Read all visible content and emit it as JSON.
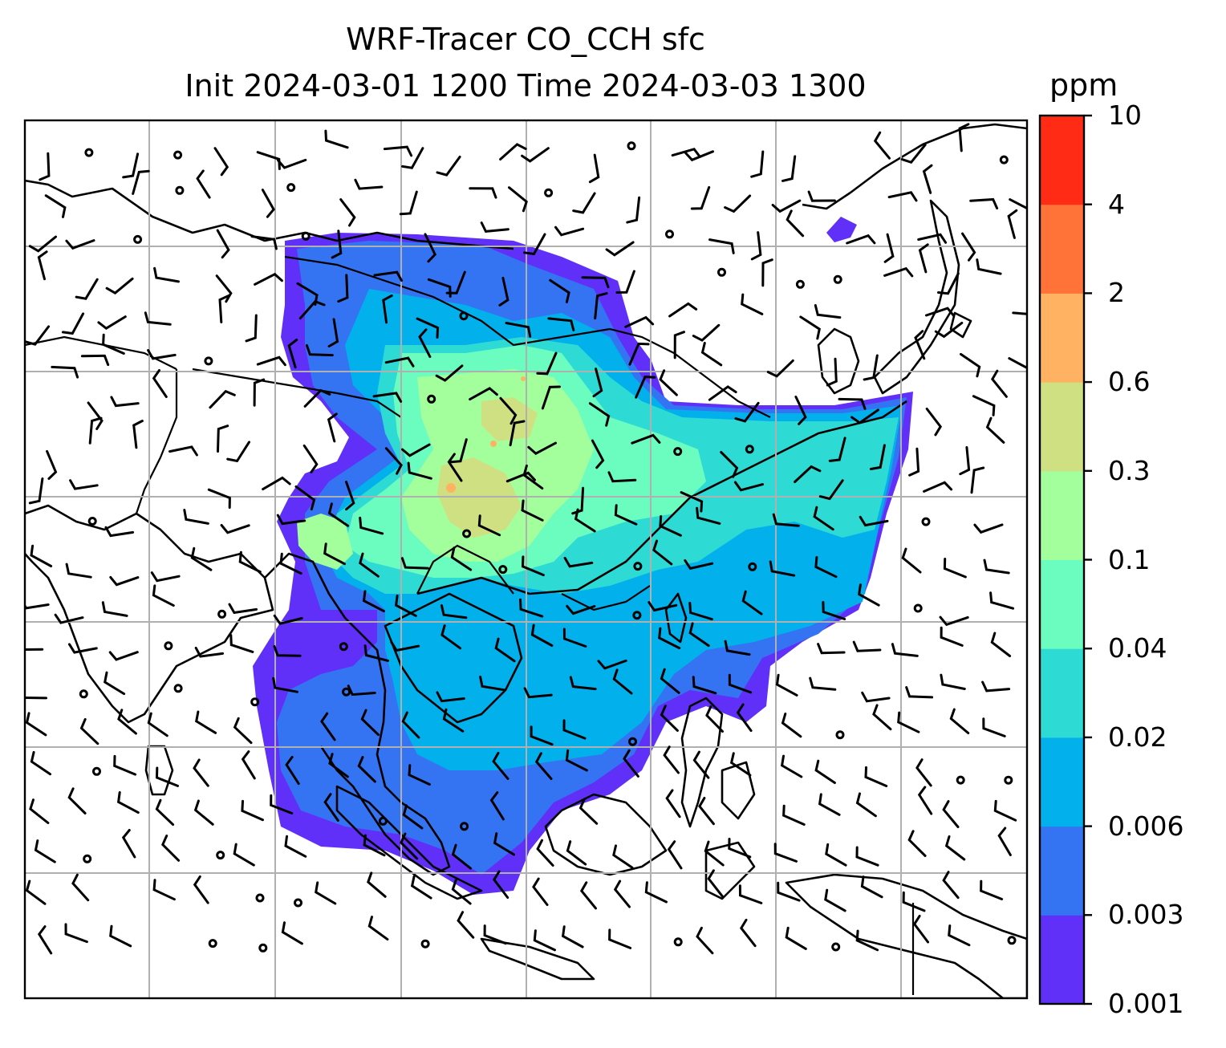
{
  "title": {
    "line1": "WRF-Tracer CO_CCH sfc",
    "line2": "Init 2024-03-01 1200 Time 2024-03-03 1300"
  },
  "colorbar": {
    "units": "ppm",
    "levels": [
      "0.001",
      "0.003",
      "0.006",
      "0.02",
      "0.04",
      "0.1",
      "0.3",
      "0.6",
      "2",
      "4",
      "10"
    ],
    "colors": [
      "#6030f8",
      "#3474f2",
      "#02b0ec",
      "#2ddad4",
      "#6bfcbf",
      "#a3fe9c",
      "#cfe083",
      "#feb262",
      "#ff7338",
      "#ff2b15"
    ]
  },
  "map": {
    "layers": [
      "coastlines",
      "country-borders",
      "lat-lon-gridlines",
      "tracer-concentration-fill",
      "wind-barbs"
    ],
    "gridlines": true
  }
}
